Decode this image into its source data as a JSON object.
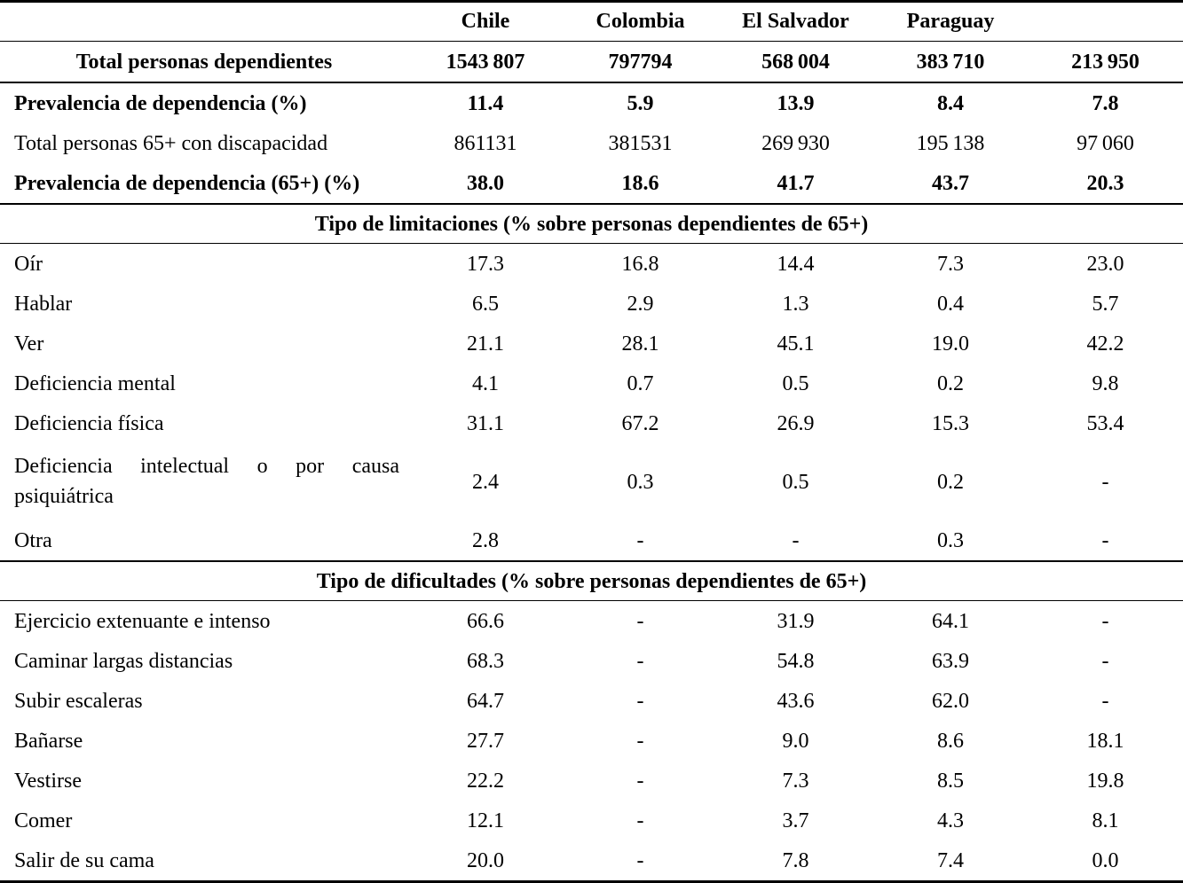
{
  "table": {
    "columns": [
      "",
      "Chile",
      "Colombia",
      "El Salvador",
      "Paraguay",
      ""
    ],
    "rows": [
      {
        "type": "data",
        "label": "Total personas dependientes",
        "bold": true,
        "center": true,
        "rule_after": true,
        "values": [
          "1543 807",
          "797794",
          "568 004",
          "383 710",
          "213 950"
        ]
      },
      {
        "type": "data",
        "label": "Prevalencia de dependencia (%)",
        "bold": true,
        "values": [
          "11.4",
          "5.9",
          "13.9",
          "8.4",
          "7.8"
        ]
      },
      {
        "type": "data",
        "label": "Total personas 65+ con discapacidad",
        "values": [
          "861131",
          "381531",
          "269 930",
          "195 138",
          "97 060"
        ]
      },
      {
        "type": "data",
        "label": "Prevalencia de dependencia (65+) (%)",
        "bold": true,
        "values": [
          "38.0",
          "18.6",
          "41.7",
          "43.7",
          "20.3"
        ]
      },
      {
        "type": "section",
        "label": "Tipo de limitaciones (% sobre personas dependientes de 65+)"
      },
      {
        "type": "data",
        "label": "Oír",
        "values": [
          "17.3",
          "16.8",
          "14.4",
          "7.3",
          "23.0"
        ]
      },
      {
        "type": "data",
        "label": "Hablar",
        "values": [
          "6.5",
          "2.9",
          "1.3",
          "0.4",
          "5.7"
        ]
      },
      {
        "type": "data",
        "label": "Ver",
        "values": [
          "21.1",
          "28.1",
          "45.1",
          "19.0",
          "42.2"
        ]
      },
      {
        "type": "data",
        "label": "Deficiencia mental",
        "values": [
          "4.1",
          "0.7",
          "0.5",
          "0.2",
          "9.8"
        ]
      },
      {
        "type": "data",
        "label": "Deficiencia física",
        "values": [
          "31.1",
          "67.2",
          "26.9",
          "15.3",
          "53.4"
        ]
      },
      {
        "type": "data",
        "label": "Deficiencia intelectual o por causa psiquiátrica",
        "justify": true,
        "values": [
          "2.4",
          "0.3",
          "0.5",
          "0.2",
          "-"
        ]
      },
      {
        "type": "data",
        "label": "Otra",
        "values": [
          "2.8",
          "-",
          "-",
          "0.3",
          "-"
        ]
      },
      {
        "type": "section",
        "label": "Tipo de dificultades (% sobre personas dependientes de 65+)"
      },
      {
        "type": "data",
        "label": "Ejercicio extenuante e intenso",
        "values": [
          "66.6",
          "-",
          "31.9",
          "64.1",
          "-"
        ]
      },
      {
        "type": "data",
        "label": "Caminar largas distancias",
        "values": [
          "68.3",
          "-",
          "54.8",
          "63.9",
          "-"
        ]
      },
      {
        "type": "data",
        "label": "Subir escaleras",
        "values": [
          "64.7",
          "-",
          "43.6",
          "62.0",
          "-"
        ]
      },
      {
        "type": "data",
        "label": "Bañarse",
        "values": [
          "27.7",
          "-",
          "9.0",
          "8.6",
          "18.1"
        ]
      },
      {
        "type": "data",
        "label": "Vestirse",
        "values": [
          "22.2",
          "-",
          "7.3",
          "8.5",
          "19.8"
        ]
      },
      {
        "type": "data",
        "label": "Comer",
        "values": [
          "12.1",
          "-",
          "3.7",
          "4.3",
          "8.1"
        ]
      },
      {
        "type": "data",
        "label": "Salir de su cama",
        "values": [
          "20.0",
          "-",
          "7.8",
          "7.4",
          "0.0"
        ]
      }
    ]
  }
}
